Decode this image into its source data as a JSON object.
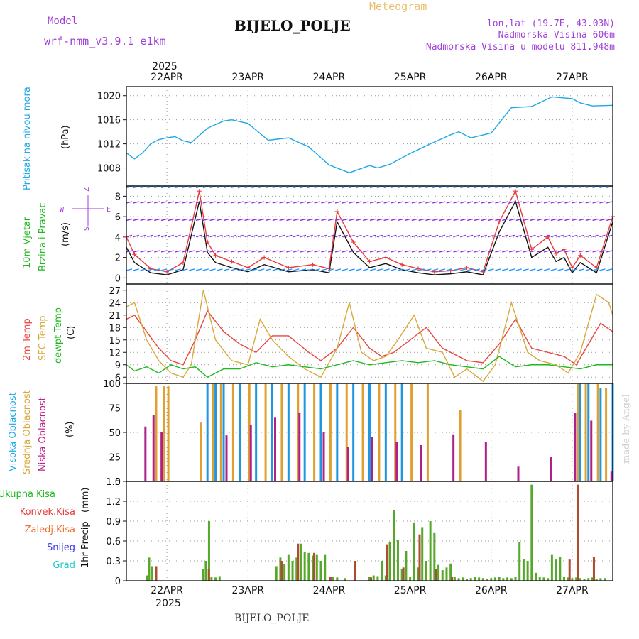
{
  "header": {
    "meteogram": "Meteogram",
    "model_label": "Model",
    "model_name": "wrf-nmm_v3.9.1 e1km",
    "station": "BIJELO_POLJE",
    "lonlat": "lon,lat (19.7E, 43.03N)",
    "altitude": "Nadmorska Visina 606m",
    "model_altitude": "Nadmorska Visina u modelu 811.948m",
    "footer_station": "BIJELO_POLJE",
    "watermark": "made by Angel"
  },
  "colors": {
    "pressure": "#1ea8e6",
    "temp2m": "#e8453c",
    "sfc": "#d8a83a",
    "dewpt": "#1fb81f",
    "high_cloud": "#1e96e0",
    "mid_cloud": "#e0a030",
    "low_cloud": "#b0208a",
    "total_precip": "#56a82a",
    "conv_precip": "#b04a30",
    "label_purple": "#a040d8",
    "label_gold": "#e8c070",
    "wind_speed": "#111111",
    "gust": "#e83a3a"
  },
  "chart_data": [
    {
      "type": "line",
      "ylabel": [
        "Pritisak na nivou mora",
        "(hPa)"
      ],
      "ylim": [
        1005,
        1021.5
      ],
      "yticks": [
        1008,
        1012,
        1016,
        1020
      ],
      "x_top_labels": [
        "22APR",
        "23APR",
        "24APR",
        "25APR",
        "26APR",
        "27APR"
      ],
      "x_top_year": "2025",
      "series": [
        {
          "key": "pressure",
          "x": [
            0,
            0.1,
            0.2,
            0.3,
            0.4,
            0.5,
            0.6,
            0.7,
            0.8,
            1.0,
            1.2,
            1.3,
            1.5,
            1.75,
            2.0,
            2.25,
            2.5,
            2.75,
            3.0,
            3.1,
            3.25,
            3.5,
            3.75,
            4.0,
            4.1,
            4.25,
            4.5,
            4.75,
            5.0,
            5.25,
            5.5,
            5.6,
            5.75,
            6.0
          ],
          "values": [
            1010.5,
            1009.5,
            1010.5,
            1012,
            1012.7,
            1013,
            1013.2,
            1012.5,
            1012.2,
            1014.6,
            1015.8,
            1016,
            1015.4,
            1012.6,
            1013,
            1011.5,
            1008.5,
            1007.2,
            1008.4,
            1008,
            1008.6,
            1010.4,
            1012,
            1013.5,
            1014,
            1013,
            1013.8,
            1018,
            1018.2,
            1019.8,
            1019.5,
            1018.8,
            1018.3,
            1018.4
          ]
        }
      ]
    },
    {
      "type": "line",
      "ylabel": [
        "10m Vjetar",
        "Brzina i Pravac",
        "(m/s)"
      ],
      "compass": [
        "Z",
        "W",
        "E",
        "S"
      ],
      "ylim": [
        -0.6,
        9.0
      ],
      "yticks": [
        0,
        2,
        4,
        6,
        8
      ],
      "series": [
        {
          "key": "wind_speed",
          "name": "10m Vjetar",
          "x": [
            0,
            0.1,
            0.3,
            0.5,
            0.7,
            0.9,
            1.0,
            1.1,
            1.3,
            1.5,
            1.7,
            2.0,
            2.3,
            2.5,
            2.6,
            2.8,
            3.0,
            3.2,
            3.4,
            3.6,
            3.8,
            4.0,
            4.2,
            4.4,
            4.6,
            4.8,
            5.0,
            5.2,
            5.3,
            5.4,
            5.5,
            5.6,
            5.8,
            6.0
          ],
          "values": [
            3,
            1.5,
            0.5,
            0.3,
            0.8,
            7.5,
            2.5,
            1.5,
            1.0,
            0.6,
            1.3,
            0.6,
            0.8,
            0.5,
            5.5,
            2.5,
            1.0,
            1.4,
            0.8,
            0.5,
            0.3,
            0.4,
            0.6,
            0.3,
            4.5,
            7.5,
            2.0,
            3.0,
            1.6,
            2.0,
            0.5,
            1.5,
            0.5,
            5.5
          ]
        },
        {
          "key": "gust",
          "name": "Brzina i Pravac",
          "x": [
            0,
            0.1,
            0.3,
            0.5,
            0.7,
            0.9,
            1.0,
            1.1,
            1.3,
            1.5,
            1.7,
            2.0,
            2.3,
            2.5,
            2.6,
            2.8,
            3.0,
            3.2,
            3.4,
            3.6,
            3.8,
            4.0,
            4.2,
            4.4,
            4.6,
            4.8,
            5.0,
            5.2,
            5.3,
            5.4,
            5.5,
            5.6,
            5.8,
            6.0
          ],
          "values": [
            4,
            2.3,
            0.9,
            0.6,
            1.5,
            8.5,
            3.5,
            2.2,
            1.6,
            1.0,
            2.0,
            1.0,
            1.3,
            0.9,
            6.5,
            3.5,
            1.6,
            2.0,
            1.3,
            0.9,
            0.6,
            0.7,
            1.0,
            0.6,
            5.5,
            8.5,
            2.8,
            4.0,
            2.4,
            2.8,
            1.0,
            2.2,
            1.0,
            6.0
          ]
        }
      ]
    },
    {
      "type": "line",
      "ylabel": [
        "2m Temp",
        "SFC Temp",
        "dewpt Temp",
        "(C)"
      ],
      "ylim": [
        4.5,
        28.5
      ],
      "yticks": [
        6,
        9,
        12,
        15,
        18,
        21,
        24,
        27
      ],
      "series": [
        {
          "key": "temp2m",
          "name": "2m Temp",
          "x": [
            0,
            0.1,
            0.25,
            0.4,
            0.55,
            0.7,
            0.85,
            1.0,
            1.2,
            1.4,
            1.6,
            1.8,
            2.0,
            2.25,
            2.4,
            2.6,
            2.8,
            3.0,
            3.15,
            3.3,
            3.5,
            3.7,
            3.9,
            4.0,
            4.2,
            4.4,
            4.6,
            4.8,
            5.0,
            5.2,
            5.4,
            5.55,
            5.7,
            5.85,
            6.0
          ],
          "values": [
            20,
            21,
            17,
            13,
            10,
            9,
            15,
            22,
            17,
            14,
            12,
            16,
            16,
            12,
            10,
            13,
            18,
            13,
            11,
            12,
            15,
            18,
            13,
            12,
            10,
            9.5,
            14,
            20,
            13,
            12,
            11,
            9,
            14,
            19,
            17
          ]
        },
        {
          "key": "sfc",
          "name": "SFC Temp",
          "x": [
            0,
            0.1,
            0.25,
            0.4,
            0.55,
            0.7,
            0.8,
            0.95,
            1.1,
            1.3,
            1.5,
            1.65,
            1.8,
            2.0,
            2.2,
            2.4,
            2.6,
            2.75,
            2.9,
            3.05,
            3.2,
            3.35,
            3.55,
            3.7,
            3.9,
            4.05,
            4.2,
            4.4,
            4.55,
            4.75,
            4.95,
            5.1,
            5.3,
            5.45,
            5.6,
            5.8,
            5.95,
            6.0
          ],
          "values": [
            23,
            24,
            15,
            10,
            7,
            6,
            9,
            27,
            15,
            10,
            9,
            20,
            15,
            11,
            8,
            6,
            13,
            24,
            12,
            10,
            11,
            15,
            21,
            13,
            12,
            6,
            8,
            5,
            9,
            24,
            12,
            10,
            9,
            7,
            12,
            26,
            24,
            21
          ]
        },
        {
          "key": "dewpt",
          "name": "dewpt Temp",
          "x": [
            0,
            0.1,
            0.25,
            0.4,
            0.55,
            0.7,
            0.85,
            1.0,
            1.2,
            1.4,
            1.6,
            1.8,
            2.0,
            2.2,
            2.4,
            2.6,
            2.8,
            3.0,
            3.2,
            3.4,
            3.6,
            3.8,
            4.0,
            4.2,
            4.4,
            4.6,
            4.8,
            5.0,
            5.2,
            5.4,
            5.6,
            5.8,
            6.0
          ],
          "values": [
            9,
            7.5,
            8.5,
            7,
            9,
            8,
            8.5,
            6,
            8,
            8,
            9.5,
            8.5,
            9,
            8.5,
            8,
            9,
            10,
            9,
            9.5,
            10,
            9.5,
            10,
            9,
            8.5,
            8,
            11,
            8.5,
            9,
            9,
            8.5,
            8,
            9,
            9
          ]
        }
      ]
    },
    {
      "type": "bar",
      "ylabel": [
        "Visoka Oblacnost",
        "Srednja Oblacnost",
        "Niska Oblacnost",
        "(%)"
      ],
      "ylim": [
        0,
        100
      ],
      "yticks": [
        0,
        25,
        50,
        75,
        100
      ],
      "series": [
        {
          "key": "high_cloud",
          "name": "Visoka Oblacnost",
          "x": [
            1.0,
            1.1,
            1.2,
            1.4,
            1.6,
            1.8,
            2.0,
            2.2,
            2.4,
            2.6,
            2.8,
            3.0,
            3.2,
            3.4,
            5.6,
            5.7,
            5.85,
            6.0
          ],
          "values": [
            100,
            100,
            100,
            100,
            100,
            100,
            100,
            100,
            100,
            100,
            100,
            100,
            100,
            100,
            100,
            100,
            95,
            100
          ]
        },
        {
          "key": "mid_cloud",
          "name": "Srednja Oblacnost",
          "x": [
            0.35,
            0.45,
            0.5,
            0.9,
            1.05,
            1.15,
            1.3,
            1.5,
            1.7,
            1.9,
            2.1,
            2.3,
            2.5,
            2.7,
            2.9,
            3.1,
            3.3,
            3.5,
            3.7,
            4.1,
            5.55,
            5.65,
            5.8,
            5.9
          ],
          "values": [
            97,
            97,
            97,
            60,
            100,
            100,
            100,
            100,
            100,
            100,
            100,
            100,
            100,
            100,
            100,
            100,
            100,
            100,
            100,
            73,
            100,
            100,
            100,
            95
          ]
        },
        {
          "key": "low_cloud",
          "name": "Niska Oblacnost",
          "x": [
            0.2,
            0.3,
            0.4,
            1.2,
            1.5,
            1.8,
            2.1,
            2.4,
            2.7,
            3.0,
            3.3,
            3.6,
            4.0,
            4.4,
            4.8,
            5.2,
            5.5,
            5.7,
            5.95
          ],
          "values": [
            56,
            68,
            50,
            47,
            58,
            65,
            70,
            50,
            35,
            45,
            40,
            37,
            48,
            40,
            15,
            25,
            70,
            62,
            10
          ]
        }
      ]
    },
    {
      "type": "bar",
      "ylabel": [
        "1hr Precip",
        "(mm)"
      ],
      "legend": [
        "Ukupna Kisa",
        "Konvek.Kisa",
        "Zaledj.Kisa",
        "Snijeg",
        "Grad"
      ],
      "ylim": [
        0,
        1.5
      ],
      "yticks": [
        0,
        0.3,
        0.6,
        0.9,
        1.2,
        1.5
      ],
      "x_bottom_labels": [
        "22APR",
        "23APR",
        "24APR",
        "25APR",
        "26APR",
        "27APR"
      ],
      "x_bottom_year": "2025",
      "series": [
        {
          "key": "total_precip",
          "name": "Ukupna Kisa",
          "x": [
            0.25,
            0.28,
            0.32,
            0.95,
            0.98,
            1.02,
            1.05,
            1.1,
            1.15,
            1.85,
            1.9,
            1.95,
            2.0,
            2.05,
            2.1,
            2.15,
            2.2,
            2.25,
            2.3,
            2.35,
            2.4,
            2.45,
            2.55,
            2.6,
            2.7,
            3.0,
            3.05,
            3.1,
            3.15,
            3.2,
            3.25,
            3.3,
            3.35,
            3.4,
            3.45,
            3.5,
            3.55,
            3.6,
            3.65,
            3.7,
            3.75,
            3.8,
            3.85,
            3.9,
            3.95,
            4.0,
            4.05,
            4.1,
            4.15,
            4.2,
            4.25,
            4.3,
            4.35,
            4.4,
            4.45,
            4.5,
            4.55,
            4.6,
            4.65,
            4.7,
            4.75,
            4.8,
            4.85,
            4.9,
            4.95,
            5.0,
            5.05,
            5.1,
            5.15,
            5.2,
            5.25,
            5.3,
            5.35,
            5.4,
            5.45,
            5.5,
            5.55,
            5.6,
            5.65,
            5.7,
            5.75,
            5.8,
            5.85,
            5.9
          ],
          "values": [
            0.08,
            0.35,
            0.22,
            0.18,
            0.3,
            0.9,
            0.06,
            0.05,
            0.07,
            0.22,
            0.35,
            0.25,
            0.4,
            0.3,
            0.35,
            0.56,
            0.44,
            0.42,
            0.38,
            0.4,
            0.3,
            0.4,
            0.06,
            0.05,
            0.04,
            0.06,
            0.08,
            0.07,
            0.3,
            0.08,
            0.58,
            1.07,
            0.62,
            0.18,
            0.45,
            0.06,
            0.88,
            0.2,
            0.81,
            0.3,
            0.9,
            0.72,
            0.24,
            0.16,
            0.2,
            0.26,
            0.06,
            0.04,
            0.05,
            0.03,
            0.04,
            0.06,
            0.05,
            0.04,
            0.03,
            0.04,
            0.05,
            0.06,
            0.04,
            0.05,
            0.04,
            0.06,
            0.58,
            0.33,
            0.3,
            1.45,
            0.12,
            0.06,
            0.05,
            0.04,
            0.4,
            0.32,
            0.36,
            0.06,
            0.05,
            0.04,
            0.05,
            0.04,
            0.03,
            0.04,
            0.05,
            0.03,
            0.04,
            0.04
          ]
        },
        {
          "key": "conv_precip",
          "name": "Konvek.Kisa",
          "x": [
            0.35,
            1.0,
            1.9,
            2.1,
            2.3,
            2.5,
            2.8,
            3.0,
            3.2,
            3.4,
            3.6,
            3.8,
            4.0,
            5.45,
            5.55,
            5.75
          ],
          "values": [
            0.22,
            0.18,
            0.3,
            0.56,
            0.42,
            0.06,
            0.3,
            0.05,
            0.55,
            0.2,
            0.7,
            0.18,
            0.06,
            0.32,
            1.45,
            0.36
          ]
        }
      ]
    }
  ]
}
